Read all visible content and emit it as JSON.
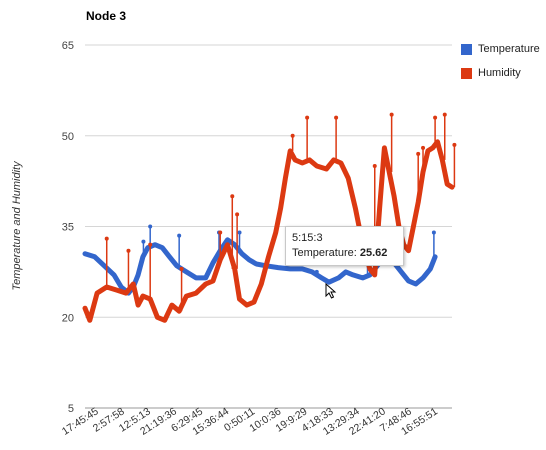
{
  "chart_data": {
    "type": "line",
    "title": "Node 3",
    "ylabel": "Temperature and Humidity",
    "xlabel": "",
    "ylim": [
      5,
      65
    ],
    "yticks": [
      5,
      20,
      35,
      50,
      65
    ],
    "categories": [
      "17:45:45",
      "2:57:58",
      "12:5:13",
      "21:19:36",
      "6:29:45",
      "15:36:44",
      "0:50:11",
      "10:0:36",
      "19:9:29",
      "4:18:33",
      "13:29:34",
      "22:41:20",
      "7:48:46",
      "16:55:51"
    ],
    "grid": true,
    "legend": "right",
    "series": [
      {
        "name": "Temperature",
        "color": "#3366cc",
        "points": [
          [
            0,
            30.5
          ],
          [
            0.4,
            30
          ],
          [
            0.8,
            28.5
          ],
          [
            1.2,
            27
          ],
          [
            1.5,
            25
          ],
          [
            1.8,
            24
          ],
          [
            2.0,
            25
          ],
          [
            2.2,
            27
          ],
          [
            2.4,
            30
          ],
          [
            2.6,
            31.5
          ],
          [
            2.9,
            32
          ],
          [
            3.2,
            31.5
          ],
          [
            3.5,
            30
          ],
          [
            3.8,
            28.5
          ],
          [
            4.2,
            27.5
          ],
          [
            4.6,
            26.5
          ],
          [
            5.0,
            26.5
          ],
          [
            5.3,
            29
          ],
          [
            5.6,
            31
          ],
          [
            5.9,
            32.8
          ],
          [
            6.2,
            32
          ],
          [
            6.5,
            30.5
          ],
          [
            6.8,
            29.5
          ],
          [
            7.1,
            28.8
          ],
          [
            7.5,
            28.5
          ],
          [
            8.0,
            28.2
          ],
          [
            8.5,
            28
          ],
          [
            9.0,
            28
          ],
          [
            9.4,
            27.5
          ],
          [
            9.8,
            26.5
          ],
          [
            10.1,
            25.8
          ],
          [
            10.5,
            26.5
          ],
          [
            10.8,
            27.5
          ],
          [
            11.1,
            27
          ],
          [
            11.5,
            26.5
          ],
          [
            11.8,
            27
          ],
          [
            12.2,
            29
          ],
          [
            12.5,
            30
          ],
          [
            12.8,
            29
          ],
          [
            13.1,
            27.5
          ],
          [
            13.4,
            26
          ],
          [
            13.7,
            25.5
          ],
          [
            14.0,
            26.5
          ],
          [
            14.3,
            28
          ],
          [
            14.5,
            30
          ]
        ],
        "spikes": [
          [
            2.42,
            32.5
          ],
          [
            2.7,
            35
          ],
          [
            3.9,
            33.5
          ],
          [
            5.55,
            34
          ],
          [
            6.4,
            34
          ],
          [
            9.6,
            27.5
          ],
          [
            11.7,
            30
          ],
          [
            14.45,
            34
          ]
        ]
      },
      {
        "name": "Humidity",
        "color": "#dc3912",
        "points": [
          [
            0,
            21.5
          ],
          [
            0.2,
            19.5
          ],
          [
            0.5,
            24
          ],
          [
            0.9,
            25
          ],
          [
            1.3,
            24.5
          ],
          [
            1.7,
            24
          ],
          [
            2.0,
            25.5
          ],
          [
            2.2,
            22
          ],
          [
            2.4,
            23.5
          ],
          [
            2.7,
            23
          ],
          [
            3.0,
            20
          ],
          [
            3.3,
            19.5
          ],
          [
            3.6,
            22
          ],
          [
            3.9,
            21
          ],
          [
            4.2,
            23.5
          ],
          [
            4.6,
            24
          ],
          [
            5.0,
            25.5
          ],
          [
            5.3,
            26
          ],
          [
            5.6,
            29.5
          ],
          [
            5.9,
            32
          ],
          [
            6.2,
            28
          ],
          [
            6.4,
            23
          ],
          [
            6.7,
            22
          ],
          [
            7.0,
            22.5
          ],
          [
            7.3,
            25.5
          ],
          [
            7.6,
            30
          ],
          [
            7.9,
            34
          ],
          [
            8.1,
            38
          ],
          [
            8.3,
            43
          ],
          [
            8.5,
            47.5
          ],
          [
            8.7,
            46
          ],
          [
            9.0,
            45.5
          ],
          [
            9.3,
            46
          ],
          [
            9.6,
            45
          ],
          [
            10.0,
            44.5
          ],
          [
            10.3,
            46
          ],
          [
            10.6,
            45.5
          ],
          [
            10.9,
            43
          ],
          [
            11.2,
            38
          ],
          [
            11.5,
            32
          ],
          [
            11.8,
            28
          ],
          [
            12.0,
            27
          ],
          [
            12.2,
            38
          ],
          [
            12.4,
            48
          ],
          [
            12.6,
            44
          ],
          [
            12.8,
            40
          ],
          [
            13.0,
            35
          ],
          [
            13.2,
            32
          ],
          [
            13.4,
            31
          ],
          [
            13.6,
            35
          ],
          [
            13.8,
            39
          ],
          [
            14.0,
            44
          ],
          [
            14.2,
            47.5
          ],
          [
            14.4,
            48
          ],
          [
            14.6,
            49
          ],
          [
            14.8,
            46
          ],
          [
            15.0,
            42
          ],
          [
            15.2,
            41.5
          ]
        ],
        "spikes": [
          [
            0.9,
            33
          ],
          [
            1.8,
            31
          ],
          [
            2.7,
            32
          ],
          [
            4.0,
            28
          ],
          [
            5.6,
            34
          ],
          [
            6.1,
            40
          ],
          [
            6.3,
            37
          ],
          [
            8.6,
            50
          ],
          [
            9.2,
            53
          ],
          [
            10.4,
            53
          ],
          [
            12.0,
            45
          ],
          [
            12.7,
            53.5
          ],
          [
            13.8,
            47
          ],
          [
            14.0,
            48
          ],
          [
            14.5,
            53
          ],
          [
            14.9,
            53.5
          ],
          [
            15.3,
            48.5
          ]
        ]
      }
    ],
    "tooltip": {
      "label": "5:15:3",
      "series": "Temperature:",
      "value": "25.62"
    }
  }
}
